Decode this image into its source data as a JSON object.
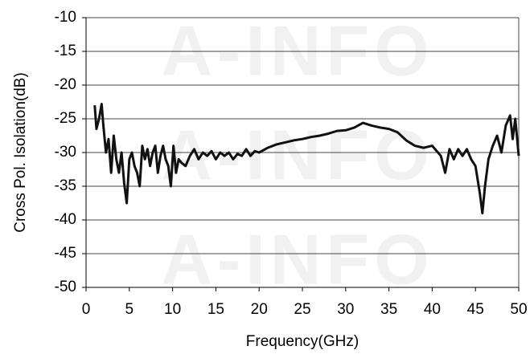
{
  "chart_data": {
    "type": "line",
    "watermark": "A-INFO",
    "x_label": "Frequency(GHz)",
    "y_label": "Cross Pol. Isolation(dB)",
    "xlim": [
      0,
      50
    ],
    "xticks": [
      0,
      5,
      10,
      15,
      20,
      25,
      30,
      35,
      40,
      45,
      50
    ],
    "ylim": [
      -50,
      -10
    ],
    "yticks": [
      -10,
      -15,
      -20,
      -25,
      -30,
      -35,
      -40,
      -45,
      -50
    ],
    "grid": true,
    "series": [
      {
        "color": "#111111",
        "x": [
          1.0,
          1.2,
          1.5,
          1.8,
          2.0,
          2.3,
          2.6,
          2.9,
          3.2,
          3.5,
          3.8,
          4.1,
          4.4,
          4.7,
          5.0,
          5.3,
          5.6,
          5.9,
          6.2,
          6.5,
          6.8,
          7.1,
          7.4,
          7.7,
          8.0,
          8.3,
          8.6,
          8.9,
          9.2,
          9.5,
          9.8,
          10.1,
          10.4,
          10.7,
          11,
          11.5,
          12,
          12.5,
          13,
          13.5,
          14,
          14.5,
          15,
          15.5,
          16,
          16.5,
          17,
          17.5,
          18,
          18.5,
          19,
          19.5,
          20,
          21,
          22,
          23,
          24,
          25,
          26,
          27,
          28,
          29,
          30,
          31,
          32,
          33,
          34,
          35,
          36,
          37,
          38,
          39,
          40,
          41,
          41.5,
          42,
          42.5,
          43,
          43.5,
          44,
          44.5,
          45,
          45.5,
          45.8,
          46.1,
          46.5,
          47,
          47.5,
          48,
          48.5,
          49,
          49.3,
          49.6,
          50
        ],
        "values": [
          -23,
          -26.5,
          -25,
          -22.8,
          -26,
          -30,
          -28,
          -33,
          -27.5,
          -31,
          -33,
          -30,
          -34.5,
          -37.5,
          -31,
          -30,
          -32,
          -33,
          -35,
          -29,
          -31,
          -29.5,
          -32,
          -30,
          -29,
          -33,
          -30.5,
          -29,
          -31,
          -32,
          -35,
          -29,
          -33,
          -31,
          -31.5,
          -32,
          -30.5,
          -29.5,
          -31,
          -30,
          -30.5,
          -29.8,
          -31,
          -30,
          -30.5,
          -30,
          -31,
          -30.2,
          -30.5,
          -29.5,
          -30.5,
          -29.8,
          -30,
          -29.3,
          -28.8,
          -28.5,
          -28.2,
          -28,
          -27.7,
          -27.5,
          -27.2,
          -26.8,
          -26.7,
          -26.3,
          -25.6,
          -26,
          -26.3,
          -26.5,
          -27,
          -28.2,
          -29,
          -29.3,
          -29,
          -30.5,
          -33,
          -29.5,
          -31,
          -29.5,
          -30.5,
          -29.5,
          -31,
          -32,
          -36,
          -39,
          -35,
          -31,
          -29,
          -27.5,
          -30,
          -26,
          -24.5,
          -28,
          -25,
          -30.5
        ]
      }
    ]
  }
}
